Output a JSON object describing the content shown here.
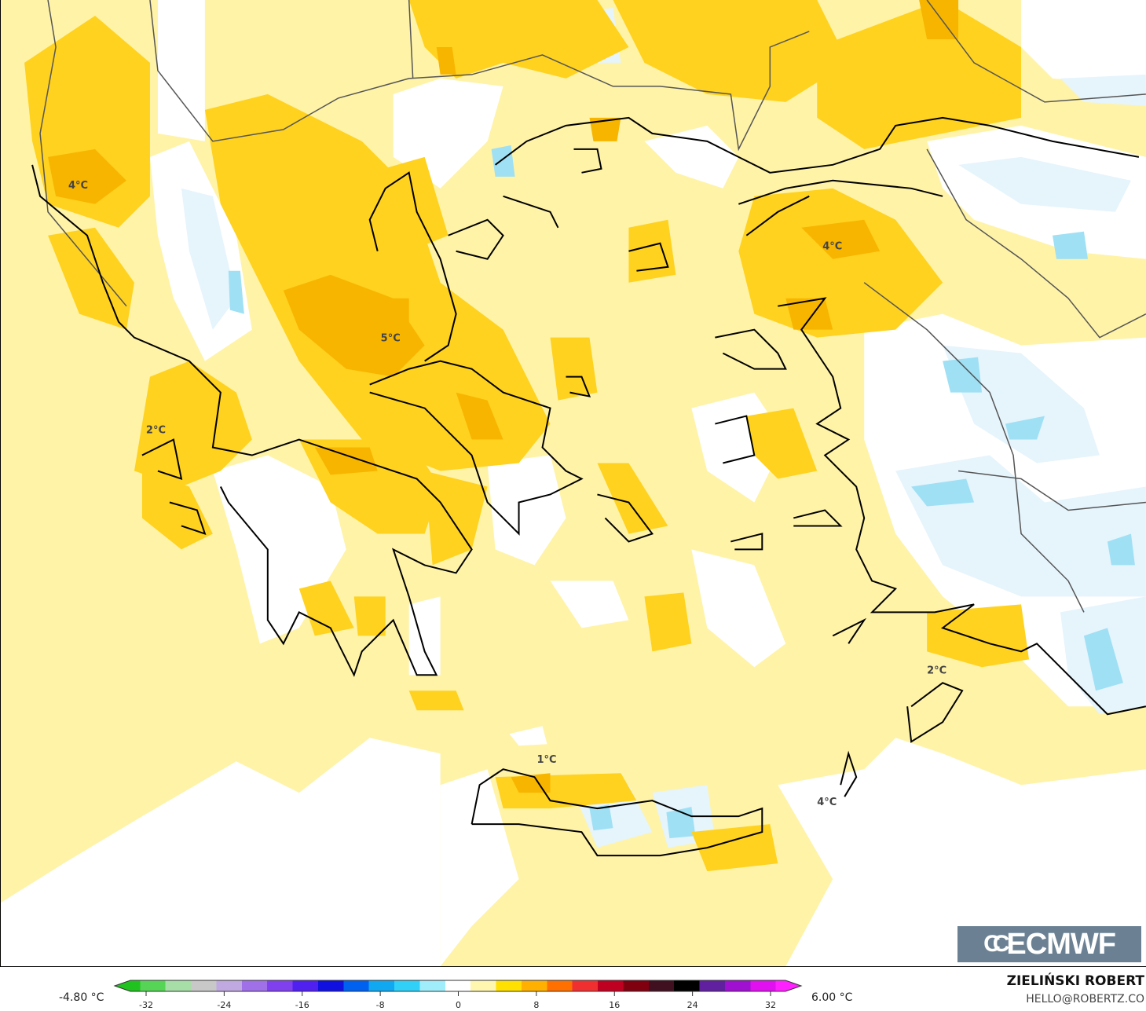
{
  "map": {
    "type": "temperature anomaly contour map",
    "colors": {
      "base": "#fff3a8",
      "light_yellow": "#ffe566",
      "yellow": "#ffd21f",
      "orange": "#f7b500",
      "white": "#ffffff",
      "light_blue": "#e6f4fc",
      "blue": "#9fe0f5",
      "coast": "#000000",
      "border": "#555555"
    },
    "labels": [
      {
        "text": "4°C"
      },
      {
        "text": "5°C"
      },
      {
        "text": "2°C"
      },
      {
        "text": "4°C"
      },
      {
        "text": "2°C"
      },
      {
        "text": "1°C"
      },
      {
        "text": "4°C"
      }
    ]
  },
  "logo": {
    "text": "ECMWF"
  },
  "colorbar": {
    "min_label": "-4.80 °C",
    "max_label": "6.00 °C",
    "ticks": [
      "-32",
      "-24",
      "-16",
      "-8",
      "0",
      "8",
      "16",
      "24",
      "32"
    ],
    "colors": [
      "#1fc21f",
      "#55d455",
      "#a7dea7",
      "#c8c8c8",
      "#c0a8e0",
      "#a070e8",
      "#8040f0",
      "#5020f0",
      "#1010e0",
      "#0060f0",
      "#10a8f0",
      "#30d0f8",
      "#a0eefc",
      "#ffffff",
      "#fff6b0",
      "#ffe000",
      "#ffb000",
      "#ff7000",
      "#f03030",
      "#c00020",
      "#800010",
      "#401020",
      "#000000",
      "#6020a0",
      "#a010d0",
      "#e010f0",
      "#ff20ff"
    ]
  },
  "credits": {
    "author": "ZIELIŃSKI ROBERT",
    "email": "HELLO@ROBERTZ.CO"
  }
}
